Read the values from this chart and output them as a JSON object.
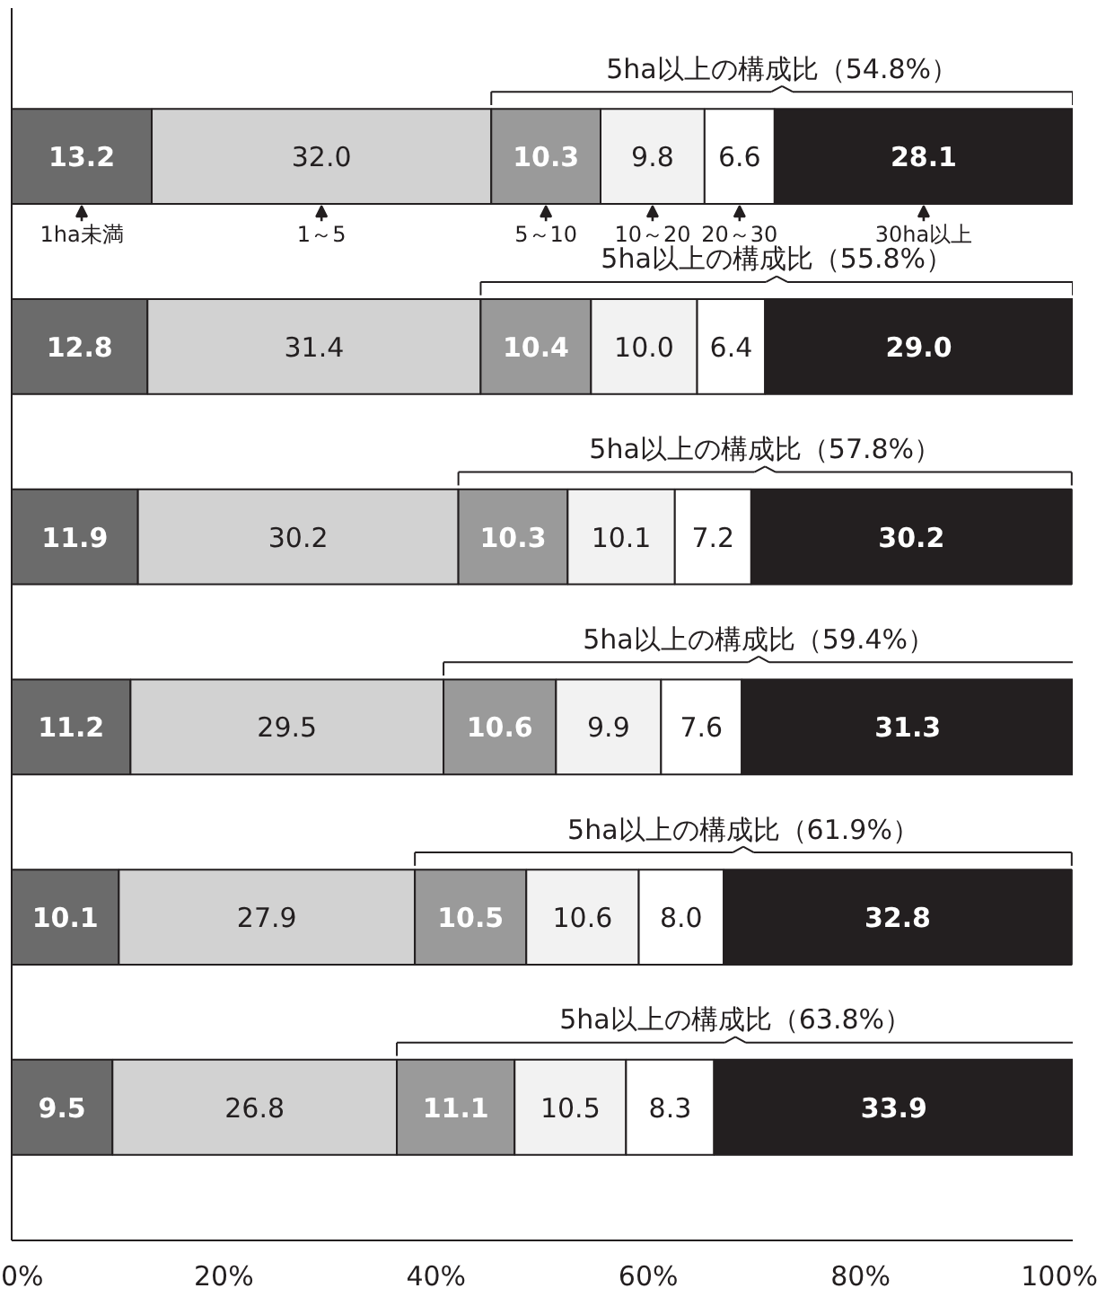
{
  "chart_data": {
    "type": "bar",
    "orientation": "horizontal",
    "stacked": true,
    "legend": "top",
    "tick_labels": "x",
    "categories": [
      null,
      null,
      null,
      null,
      null,
      null
    ],
    "xlim": [
      0,
      100
    ],
    "xticks": [
      {
        "value": 0,
        "label": "0%"
      },
      {
        "value": 20,
        "label": "20%"
      },
      {
        "value": 40,
        "label": "40%"
      },
      {
        "value": 60,
        "label": "60%"
      },
      {
        "value": 80,
        "label": "80%"
      },
      {
        "value": 100,
        "label": "100%"
      }
    ],
    "series": [
      {
        "name": "1ha未満",
        "color": "#6b6b6b",
        "values": [
          13.2,
          12.8,
          11.9,
          11.2,
          10.1,
          9.5
        ],
        "value_labels": [
          "13.2",
          "12.8",
          "11.9",
          "11.2",
          "10.1",
          "9.5"
        ]
      },
      {
        "name": "1～5",
        "color": "#d2d2d2",
        "values": [
          32.0,
          31.4,
          30.2,
          29.5,
          27.9,
          26.8
        ],
        "value_labels": [
          "32.0",
          "31.4",
          "30.2",
          "29.5",
          "27.9",
          "26.8"
        ]
      },
      {
        "name": "5～10",
        "color": "#9a9a9a",
        "values": [
          10.3,
          10.4,
          10.3,
          10.6,
          10.5,
          11.1
        ],
        "value_labels": [
          "10.3",
          "10.4",
          "10.3",
          "10.6",
          "10.5",
          "11.1"
        ]
      },
      {
        "name": "10～20",
        "color": "#f2f2f2",
        "values": [
          9.8,
          10.0,
          10.1,
          9.9,
          10.6,
          10.5
        ],
        "value_labels": [
          "9.8",
          "10.0",
          "10.1",
          "9.9",
          "10.6",
          "10.5"
        ]
      },
      {
        "name": "20～30",
        "color": "#ffffff",
        "values": [
          6.6,
          6.4,
          7.2,
          7.6,
          8.0,
          8.3
        ],
        "value_labels": [
          "6.6",
          "6.4",
          "7.2",
          "7.6",
          "8.0",
          "8.3"
        ]
      },
      {
        "name": "30ha以上",
        "color": "#231f20",
        "values": [
          28.1,
          29.0,
          30.2,
          31.3,
          32.8,
          33.9
        ],
        "value_labels": [
          "28.1",
          "29.0",
          "30.2",
          "31.3",
          "32.8",
          "33.9"
        ]
      }
    ],
    "annotations": [
      "5ha以上の構成比（54.8%）",
      "5ha以上の構成比（55.8%）",
      "5ha以上の構成比（57.8%）",
      "5ha以上の構成比（59.4%）",
      "5ha以上の構成比（61.9%）",
      "5ha以上の構成比（63.8%）"
    ]
  }
}
